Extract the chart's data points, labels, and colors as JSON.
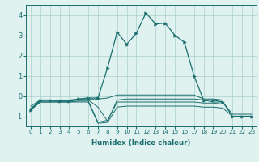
{
  "xlabel": "Humidex (Indice chaleur)",
  "x": [
    0,
    1,
    2,
    3,
    4,
    5,
    6,
    7,
    8,
    9,
    10,
    11,
    12,
    13,
    14,
    15,
    16,
    17,
    18,
    19,
    20,
    21,
    22,
    23
  ],
  "line_main": [
    -0.7,
    -0.2,
    -0.2,
    -0.25,
    -0.25,
    -0.15,
    -0.1,
    -0.1,
    1.4,
    3.15,
    2.55,
    3.1,
    4.1,
    3.55,
    3.6,
    3.0,
    2.65,
    1.0,
    -0.2,
    -0.2,
    -0.3,
    -1.0,
    -1.0,
    -1.0
  ],
  "line2": [
    -0.5,
    -0.2,
    -0.2,
    -0.2,
    -0.2,
    -0.15,
    -0.15,
    -0.15,
    -0.1,
    0.05,
    0.05,
    0.05,
    0.05,
    0.05,
    0.05,
    0.05,
    0.05,
    0.05,
    -0.15,
    -0.15,
    -0.2,
    -0.2,
    -0.2,
    -0.2
  ],
  "line3": [
    -0.6,
    -0.25,
    -0.25,
    -0.25,
    -0.25,
    -0.2,
    -0.2,
    -0.55,
    -1.25,
    -0.2,
    -0.15,
    -0.15,
    -0.15,
    -0.15,
    -0.15,
    -0.15,
    -0.15,
    -0.15,
    -0.2,
    -0.3,
    -0.3,
    -0.9,
    -0.9,
    -0.9
  ],
  "line4": [
    -0.65,
    -0.3,
    -0.3,
    -0.3,
    -0.3,
    -0.25,
    -0.25,
    -1.3,
    -1.2,
    -0.3,
    -0.3,
    -0.3,
    -0.3,
    -0.3,
    -0.3,
    -0.3,
    -0.3,
    -0.3,
    -0.35,
    -0.35,
    -0.4,
    -0.4,
    -0.4,
    -0.4
  ],
  "line5": [
    -0.7,
    -0.3,
    -0.3,
    -0.3,
    -0.3,
    -0.3,
    -0.3,
    -1.35,
    -1.3,
    -0.55,
    -0.5,
    -0.5,
    -0.5,
    -0.5,
    -0.5,
    -0.5,
    -0.5,
    -0.5,
    -0.55,
    -0.55,
    -0.6,
    -1.0,
    -1.0,
    -1.0
  ],
  "bg_color": "#dff2f0",
  "grid_color": "#aacfcc",
  "line_color": "#1a6e6e",
  "ylim": [
    -1.5,
    4.5
  ],
  "yticks": [
    -1,
    0,
    1,
    2,
    3,
    4
  ],
  "marker": ">"
}
